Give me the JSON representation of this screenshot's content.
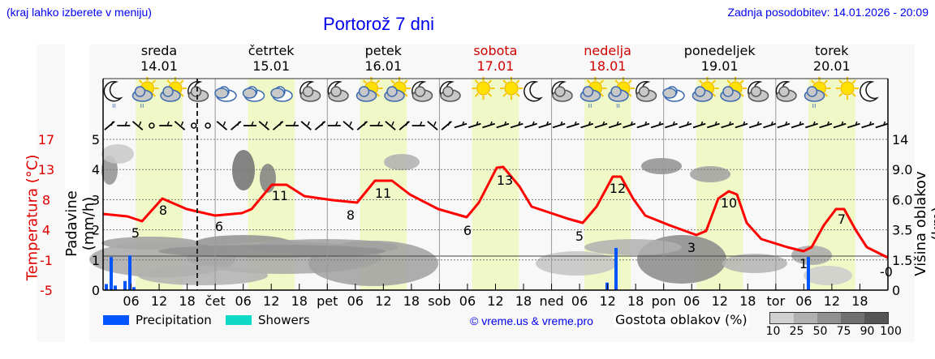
{
  "header": {
    "region_hint": "(kraj lahko izberete v meniju)",
    "title": "Portorož 7 dni",
    "last_update": "Zadnja posodobitev: 14.01.2026 - 20:09"
  },
  "days": [
    {
      "name": "sreda",
      "date": "14.01",
      "weekend": false
    },
    {
      "name": "četrtek",
      "date": "15.01",
      "weekend": false
    },
    {
      "name": "petek",
      "date": "16.01",
      "weekend": false
    },
    {
      "name": "sobota",
      "date": "17.01",
      "weekend": true
    },
    {
      "name": "nedelja",
      "date": "18.01",
      "weekend": true
    },
    {
      "name": "ponedeljek",
      "date": "19.01",
      "weekend": false
    },
    {
      "name": "torek",
      "date": "20.01",
      "weekend": false
    }
  ],
  "axes": {
    "left_precip_label": "Padavine (mm/h)",
    "left_temp_label": "Temperatura (°C)",
    "right_label": "Višina oblakov (km)",
    "precip_ticks": [
      "0",
      "1",
      "2",
      "3",
      "4",
      "5"
    ],
    "temp_ticks": [
      "-5",
      "-1",
      "4",
      "8",
      "13",
      "17"
    ],
    "cloud_height_ticks": [
      "0",
      "1.5",
      "3.5",
      "6.0",
      "9.0",
      "14"
    ],
    "x_ticks": [
      "06",
      "12",
      "18",
      "čet",
      "06",
      "12",
      "18",
      "pet",
      "06",
      "12",
      "18",
      "sob",
      "06",
      "12",
      "18",
      "ned",
      "06",
      "12",
      "18",
      "pon",
      "06",
      "12",
      "18",
      "tor",
      "06",
      "12",
      "18"
    ]
  },
  "legend": {
    "precipitation": "Precipitation",
    "showers": "Showers",
    "copyright": "© vreme.us & vreme.pro",
    "cloud_density_label": "Gostota oblakov (%)",
    "cloud_density_ticks": [
      "10",
      "25",
      "50",
      "75",
      "90",
      "100"
    ]
  },
  "colors": {
    "temperature": "#ff0000",
    "precipitation": "#0055ff",
    "showers": "#11d9c8",
    "daylight": "#f0f8c8",
    "link": "#0000ee",
    "weekend": "#d00000"
  },
  "icons": [
    "night-rain",
    "sun-cloud-rain",
    "sun-cloud",
    "night-cloud",
    "cloudy",
    "cloudy",
    "cloudy",
    "night-cloud",
    "night-cloud",
    "sun-cloud",
    "sun-cloud",
    "night-cloud",
    "night-cloud",
    "sun",
    "sun",
    "night",
    "night-cloud",
    "sun-cloud-rain",
    "sun-cloud-rain",
    "night-cloud",
    "cloudy",
    "sun-cloud",
    "sun-cloud",
    "night-cloud",
    "night-cloud",
    "sun-cloud-rain",
    "sun",
    "night"
  ],
  "chart_data": {
    "type": "line",
    "title": "Portorož 7 dni",
    "xlabel": "",
    "ylabel": "Temperatura (°C) / Padavine (mm/h)",
    "x": [
      "14.01 00",
      "14.01 06",
      "14.01 09",
      "14.01 18",
      "15.01 03",
      "15.01 12",
      "15.01 21",
      "16.01 03",
      "16.01 12",
      "16.01 21",
      "17.01 06",
      "17.01 12",
      "17.01 21",
      "18.01 06",
      "18.01 12",
      "18.01 21",
      "19.01 06",
      "19.01 12",
      "19.01 21",
      "20.01 06",
      "20.01 12",
      "20.01 24"
    ],
    "series": [
      {
        "name": "Temperatura (°C)",
        "values": [
          5.5,
          5,
          8,
          6.5,
          6,
          11,
          8.5,
          8,
          11,
          8,
          6,
          13,
          8,
          5,
          12,
          6,
          3,
          10,
          4,
          1,
          7,
          0
        ]
      },
      {
        "name": "Precipitation (mm/h)",
        "values": [
          0.2,
          1.1,
          0.2,
          0.1,
          1.1,
          0.2,
          0,
          0,
          0,
          0,
          0,
          0,
          0,
          0,
          0.3,
          1.4,
          0,
          0,
          0,
          1.1,
          0,
          0
        ]
      }
    ],
    "temperature_labels": [
      {
        "t": "14.01 06",
        "value": 5
      },
      {
        "t": "14.01 12",
        "value": 8
      },
      {
        "t": "15.01 03",
        "value": 6
      },
      {
        "t": "15.01 12",
        "value": 11
      },
      {
        "t": "15.01 24",
        "value": 8
      },
      {
        "t": "16.01 12",
        "value": 11
      },
      {
        "t": "17.01 03",
        "value": 6
      },
      {
        "t": "17.01 12",
        "value": 13
      },
      {
        "t": "18.01 03",
        "value": 5
      },
      {
        "t": "18.01 12",
        "value": 12
      },
      {
        "t": "19.01 06",
        "value": 3
      },
      {
        "t": "19.01 12",
        "value": 10
      },
      {
        "t": "20.01 06",
        "value": 1
      },
      {
        "t": "20.01 12",
        "value": 7
      },
      {
        "t": "20.01 24",
        "value": 0
      }
    ],
    "ylim_precip": [
      0,
      5
    ],
    "ylim_temp": [
      -5,
      17
    ],
    "grid": true,
    "legend_position": "bottom"
  }
}
